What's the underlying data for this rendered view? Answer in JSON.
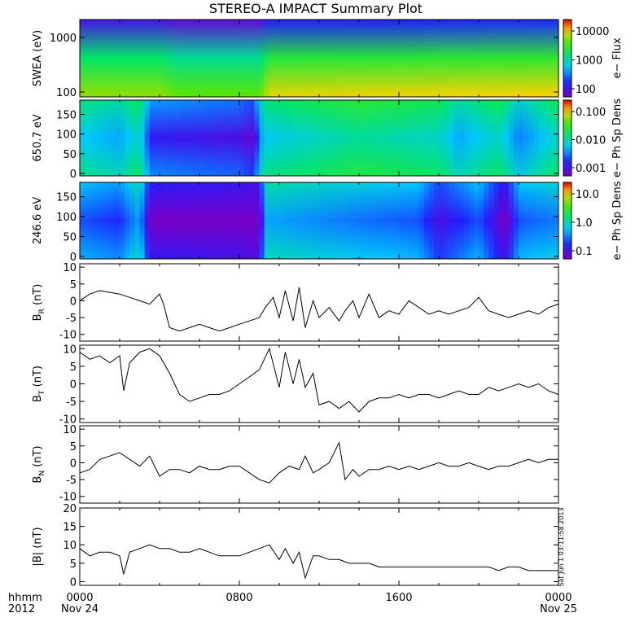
{
  "title": "STEREO-A IMPACT Summary Plot",
  "x_axis": {
    "ticks": [
      "0000",
      "0800",
      "1600",
      "0000"
    ],
    "sublabels": [
      "Nov 24",
      "Nov 25"
    ],
    "corner_top": "hhmm",
    "corner_bottom": "2012"
  },
  "timestamp": "Sat Jun 1 03:11:58 2013",
  "colors": {
    "axes": "#000000",
    "trace": "#000000",
    "background": "#ffffff"
  },
  "chart_data": [
    {
      "type": "heatmap",
      "id": "swea",
      "ylabel": "SWEA (eV)",
      "yticks": [
        "1000",
        "100"
      ],
      "colorbar_label": "e− Flux",
      "colorbar_ticks": [
        "10000",
        "1000",
        "100"
      ],
      "colorbar_scale": "log",
      "colorbar_range": [
        10,
        60000
      ]
    },
    {
      "type": "heatmap",
      "id": "pad650",
      "ylabel": "650.7 eV",
      "yticks": [
        "150",
        "100",
        "50",
        "0"
      ],
      "ylim": [
        0,
        180
      ],
      "colorbar_label": "e− Ph Sp Dens",
      "colorbar_ticks": [
        "0.100",
        "0.010",
        "0.001"
      ],
      "colorbar_scale": "log",
      "colorbar_range": [
        0.001,
        0.1
      ]
    },
    {
      "type": "heatmap",
      "id": "pad246",
      "ylabel": "246.6 eV",
      "yticks": [
        "150",
        "100",
        "50",
        "0"
      ],
      "ylim": [
        0,
        180
      ],
      "colorbar_label": "e− Ph Sp Dens",
      "colorbar_ticks": [
        "10.0",
        "1.0",
        "0.1"
      ],
      "colorbar_scale": "log",
      "colorbar_range": [
        0.1,
        10
      ]
    },
    {
      "type": "line",
      "id": "br",
      "ylabel": "B",
      "ylabel_sub": "R",
      "ylabel_unit": " (nT)",
      "ylim": [
        -12,
        11
      ],
      "yticks": [
        "10",
        "5",
        "0",
        "-5",
        "-10"
      ],
      "x": [
        0,
        0.5,
        1,
        1.5,
        2,
        2.5,
        3,
        3.5,
        4,
        4.2,
        4.5,
        5,
        5.5,
        6,
        6.5,
        7,
        7.5,
        8,
        8.5,
        9,
        9.3,
        9.7,
        10,
        10.3,
        10.7,
        11,
        11.3,
        11.7,
        12,
        12.5,
        13,
        13.3,
        13.7,
        14,
        14.5,
        15,
        15.5,
        16,
        16.5,
        17,
        17.5,
        18,
        18.5,
        19,
        19.5,
        20,
        20.5,
        21,
        21.5,
        22,
        22.5,
        23,
        23.5,
        24
      ],
      "values": [
        0,
        2,
        3,
        2.5,
        2,
        1,
        0,
        -1,
        2,
        -1,
        -8,
        -9,
        -8,
        -7,
        -8,
        -9,
        -8,
        -7,
        -6,
        -5,
        -2,
        1,
        -5,
        3,
        -6,
        4,
        -8,
        0,
        -5,
        -2,
        -6,
        -3,
        0,
        -5,
        2,
        -5,
        -3,
        -4,
        0,
        -2,
        -4,
        -3,
        -4,
        -3,
        -2,
        1,
        -3,
        -4,
        -5,
        -4,
        -3,
        -4,
        -2,
        -1
      ],
      "xlim": [
        0,
        24
      ]
    },
    {
      "type": "line",
      "id": "bt",
      "ylabel": "B",
      "ylabel_sub": "T",
      "ylabel_unit": " (nT)",
      "ylim": [
        -11,
        11
      ],
      "yticks": [
        "10",
        "5",
        "0",
        "-5",
        "-10"
      ],
      "x": [
        0,
        0.5,
        1,
        1.5,
        2,
        2.2,
        2.5,
        3,
        3.5,
        4,
        4.5,
        5,
        5.5,
        6,
        6.5,
        7,
        7.5,
        8,
        8.5,
        9,
        9.5,
        10,
        10.3,
        10.7,
        11,
        11.3,
        11.7,
        12,
        12.5,
        13,
        13.5,
        14,
        14.5,
        15,
        15.5,
        16,
        16.5,
        17,
        17.5,
        18,
        18.5,
        19,
        19.5,
        20,
        20.5,
        21,
        21.5,
        22,
        22.5,
        23,
        23.5,
        24
      ],
      "values": [
        9,
        7,
        8,
        6,
        8,
        -2,
        6,
        9,
        10,
        8,
        3,
        -3,
        -5,
        -4,
        -3,
        -3,
        -2,
        0,
        2,
        4,
        10,
        -1,
        9,
        0,
        7,
        -1,
        3,
        -6,
        -5,
        -7,
        -5,
        -8,
        -5,
        -4,
        -4,
        -3,
        -4,
        -3,
        -3,
        -4,
        -3,
        -2,
        -3,
        -3,
        -1,
        -2,
        -1,
        0,
        -1,
        0,
        -2,
        -3
      ],
      "xlim": [
        0,
        24
      ]
    },
    {
      "type": "line",
      "id": "bn",
      "ylabel": "B",
      "ylabel_sub": "N",
      "ylabel_unit": " (nT)",
      "ylim": [
        -12,
        11
      ],
      "yticks": [
        "10",
        "5",
        "0",
        "-5",
        "-10"
      ],
      "x": [
        0,
        0.5,
        1,
        1.5,
        2,
        2.5,
        3,
        3.5,
        4,
        4.5,
        5,
        5.5,
        6,
        6.5,
        7,
        7.5,
        8,
        8.5,
        9,
        9.5,
        10,
        10.5,
        11,
        11.3,
        11.7,
        12,
        12.5,
        13,
        13.3,
        13.7,
        14,
        14.5,
        15,
        15.5,
        16,
        16.5,
        17,
        17.5,
        18,
        18.5,
        19,
        19.5,
        20,
        20.5,
        21,
        21.5,
        22,
        22.5,
        23,
        23.5,
        24
      ],
      "values": [
        -3,
        -2,
        1,
        2,
        3,
        1,
        -1,
        2,
        -4,
        -2,
        -2,
        -3,
        -1,
        -2,
        -2,
        -1,
        -1,
        -3,
        -5,
        -6,
        -3,
        -1,
        -2,
        2,
        -3,
        -2,
        0,
        6,
        -5,
        -2,
        -4,
        -2,
        -2,
        -1,
        -2,
        -1,
        -2,
        -1,
        0,
        -1,
        -1,
        0,
        -1,
        -2,
        -1,
        -1,
        0,
        1,
        0,
        1,
        1
      ],
      "xlim": [
        0,
        24
      ]
    },
    {
      "type": "line",
      "id": "bmag",
      "ylabel": "|B| (nT)",
      "ylim": [
        -1,
        20
      ],
      "yticks": [
        "20",
        "15",
        "10",
        "5",
        "0"
      ],
      "x": [
        0,
        0.5,
        1,
        1.5,
        2,
        2.2,
        2.5,
        3,
        3.5,
        4,
        4.5,
        5,
        5.5,
        6,
        6.5,
        7,
        7.5,
        8,
        8.5,
        9,
        9.5,
        10,
        10.3,
        10.7,
        11,
        11.3,
        11.7,
        12,
        12.5,
        13,
        13.5,
        14,
        14.5,
        15,
        15.5,
        16,
        16.5,
        17,
        17.5,
        18,
        18.5,
        19,
        19.5,
        20,
        20.5,
        21,
        21.5,
        22,
        22.5,
        23,
        23.5,
        24
      ],
      "values": [
        9,
        7,
        8,
        8,
        7,
        2,
        8,
        9,
        10,
        9,
        9,
        8,
        8,
        9,
        8,
        7,
        7,
        7,
        8,
        9,
        10,
        6,
        9,
        5,
        8,
        1,
        7,
        7,
        6,
        6,
        5,
        5,
        5,
        4,
        4,
        4,
        4,
        4,
        4,
        4,
        4,
        4,
        4,
        4,
        4,
        3,
        4,
        4,
        3,
        3,
        3,
        3
      ],
      "xlim": [
        0,
        24
      ]
    }
  ]
}
